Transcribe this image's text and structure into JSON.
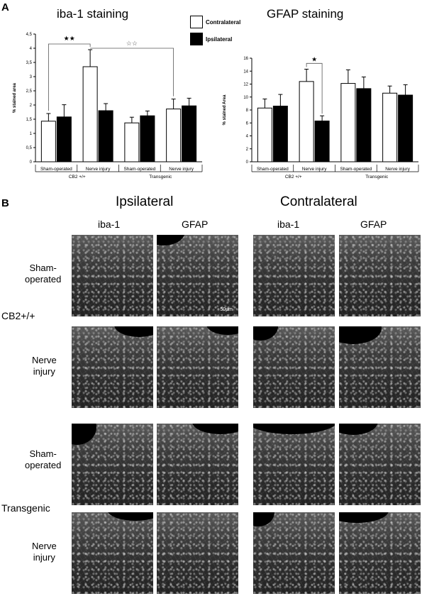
{
  "panel_a_letter": "A",
  "panel_b_letter": "B",
  "legend": {
    "contralateral": "Contralateral",
    "ipsilateral": "Ipsilateral",
    "contralateral_color": "#ffffff",
    "ipsilateral_color": "#000000"
  },
  "chart_data": [
    {
      "type": "bar",
      "title": "iba-1 staining",
      "ylabel": "% stained area",
      "xlabel": "",
      "ylim": [
        0,
        4.5
      ],
      "yticks": [
        "0",
        "0,5",
        "1",
        "1,5",
        "2",
        "2,5",
        "3",
        "3,5",
        "4",
        "4,5"
      ],
      "categories": [
        "Sham-operated",
        "Nerve injury",
        "Sham-operated",
        "Nerve injury"
      ],
      "groups": [
        "CB2 +/+",
        "Transgenic"
      ],
      "series": [
        {
          "name": "Contralateral",
          "color": "#ffffff",
          "values": [
            1.43,
            3.35,
            1.37,
            1.86
          ],
          "errors": [
            0.27,
            0.6,
            0.2,
            0.35
          ]
        },
        {
          "name": "Ipsilateral",
          "color": "#000000",
          "values": [
            1.58,
            1.8,
            1.62,
            1.97
          ],
          "errors": [
            0.43,
            0.25,
            0.17,
            0.27
          ]
        }
      ],
      "annotations": [
        "★★",
        "☆☆"
      ]
    },
    {
      "type": "bar",
      "title": "GFAP staining",
      "ylabel": "% stained Area",
      "xlabel": "",
      "ylim": [
        0,
        16
      ],
      "yticks": [
        "0",
        "2",
        "4",
        "6",
        "8",
        "10",
        "12",
        "14",
        "16"
      ],
      "categories": [
        "Sham-operated",
        "Nerve injury",
        "Sham-operated",
        "Nerve injury"
      ],
      "groups": [
        "CB2 +/+",
        "Transgenic"
      ],
      "series": [
        {
          "name": "Contralateral",
          "color": "#ffffff",
          "values": [
            8.3,
            12.4,
            12.1,
            10.6
          ],
          "errors": [
            1.4,
            1.9,
            2.1,
            1.1
          ]
        },
        {
          "name": "Ipsilateral",
          "color": "#000000",
          "values": [
            8.6,
            6.3,
            11.3,
            10.3
          ],
          "errors": [
            1.8,
            0.8,
            1.8,
            1.6
          ]
        }
      ],
      "annotations": [
        "★"
      ]
    }
  ],
  "panel_b": {
    "ipsilateral": "Ipsilateral",
    "contralateral": "Contralateral",
    "iba1": "iba-1",
    "gfap": "GFAP",
    "sham1": "Sham-",
    "sham2": "operated",
    "nerve1": "Nerve",
    "nerve2": "injury",
    "cb2": "CB2+/+",
    "transgenic": "Transgenic",
    "scale": "50μm"
  }
}
